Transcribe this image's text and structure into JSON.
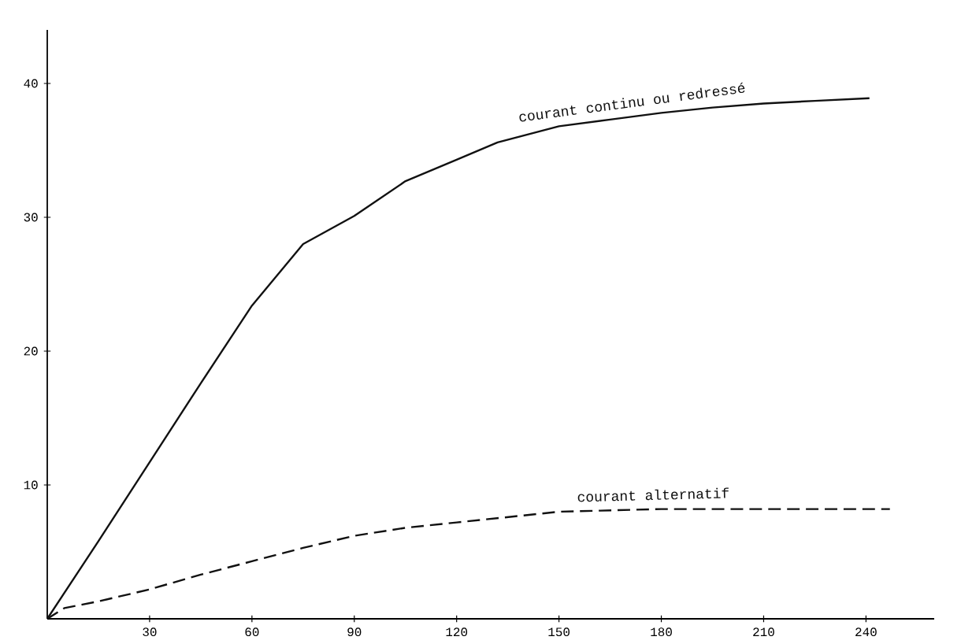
{
  "chart_data": {
    "type": "line",
    "xlim": [
      0,
      260
    ],
    "ylim": [
      0,
      44
    ],
    "xticks": [
      30,
      60,
      90,
      120,
      150,
      180,
      210,
      240
    ],
    "yticks": [
      10,
      20,
      30,
      40
    ],
    "grid": false,
    "legend": false,
    "marker": "none",
    "series": [
      {
        "name": "courant continu ou redressé",
        "color": "#111111",
        "line_style": "solid",
        "x": [
          0,
          15,
          30,
          45,
          60,
          75,
          90,
          105,
          120,
          132,
          150,
          165,
          180,
          195,
          210,
          225,
          241
        ],
        "values": [
          0,
          5.8,
          11.7,
          17.6,
          23.4,
          28,
          30.1,
          32.7,
          34.3,
          35.6,
          36.8,
          37.3,
          37.8,
          38.2,
          38.5,
          38.7,
          38.9
        ]
      },
      {
        "name": "courant alternatif",
        "color": "#111111",
        "line_style": "dashed",
        "x": [
          0,
          5,
          15,
          30,
          45,
          60,
          75,
          90,
          105,
          120,
          150,
          180,
          210,
          247
        ],
        "values": [
          0,
          0.8,
          1.3,
          2.2,
          3.3,
          4.3,
          5.3,
          6.2,
          6.8,
          7.2,
          8,
          8.2,
          8.2,
          8.2
        ]
      }
    ]
  }
}
